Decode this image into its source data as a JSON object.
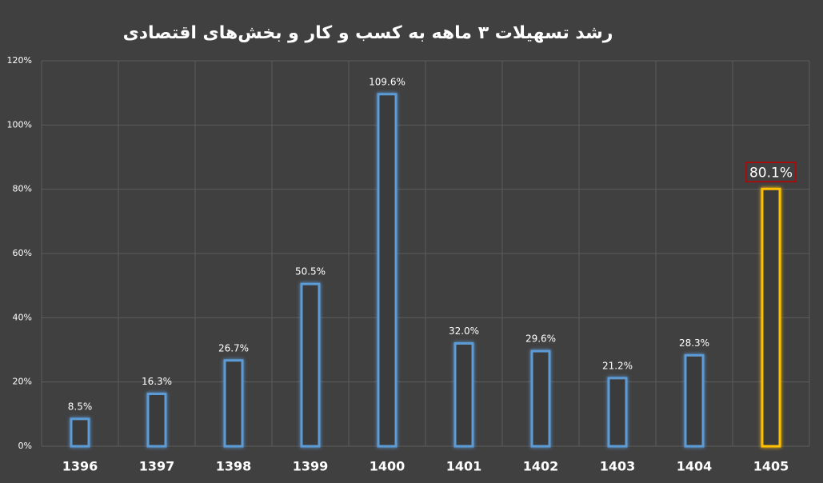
{
  "chart_data": {
    "type": "bar",
    "title": "رشد تسهیلات ۳ ماهه به کسب و کار و بخش‌های اقتصادی",
    "categories": [
      "1396",
      "1397",
      "1398",
      "1399",
      "1400",
      "1401",
      "1402",
      "1403",
      "1404",
      "1405"
    ],
    "values": [
      8.5,
      16.3,
      26.7,
      50.5,
      109.6,
      32.0,
      29.6,
      21.2,
      28.3,
      80.1
    ],
    "value_labels": [
      "8.5%",
      "16.3%",
      "26.7%",
      "50.5%",
      "109.6%",
      "32.0%",
      "29.6%",
      "21.2%",
      "28.3%",
      "80.1%"
    ],
    "colors": [
      "#5b9bd5",
      "#5b9bd5",
      "#5b9bd5",
      "#5b9bd5",
      "#5b9bd5",
      "#5b9bd5",
      "#5b9bd5",
      "#5b9bd5",
      "#5b9bd5",
      "#ffc000"
    ],
    "ylim": [
      0,
      120
    ],
    "yticks": [
      {
        "value": 0,
        "label": "0%"
      },
      {
        "value": 20,
        "label": "20%"
      },
      {
        "value": 40,
        "label": "40%"
      },
      {
        "value": 60,
        "label": "60%"
      },
      {
        "value": 80,
        "label": "80%"
      },
      {
        "value": 100,
        "label": "100%"
      },
      {
        "value": 120,
        "label": "120%"
      }
    ],
    "grid": true
  }
}
